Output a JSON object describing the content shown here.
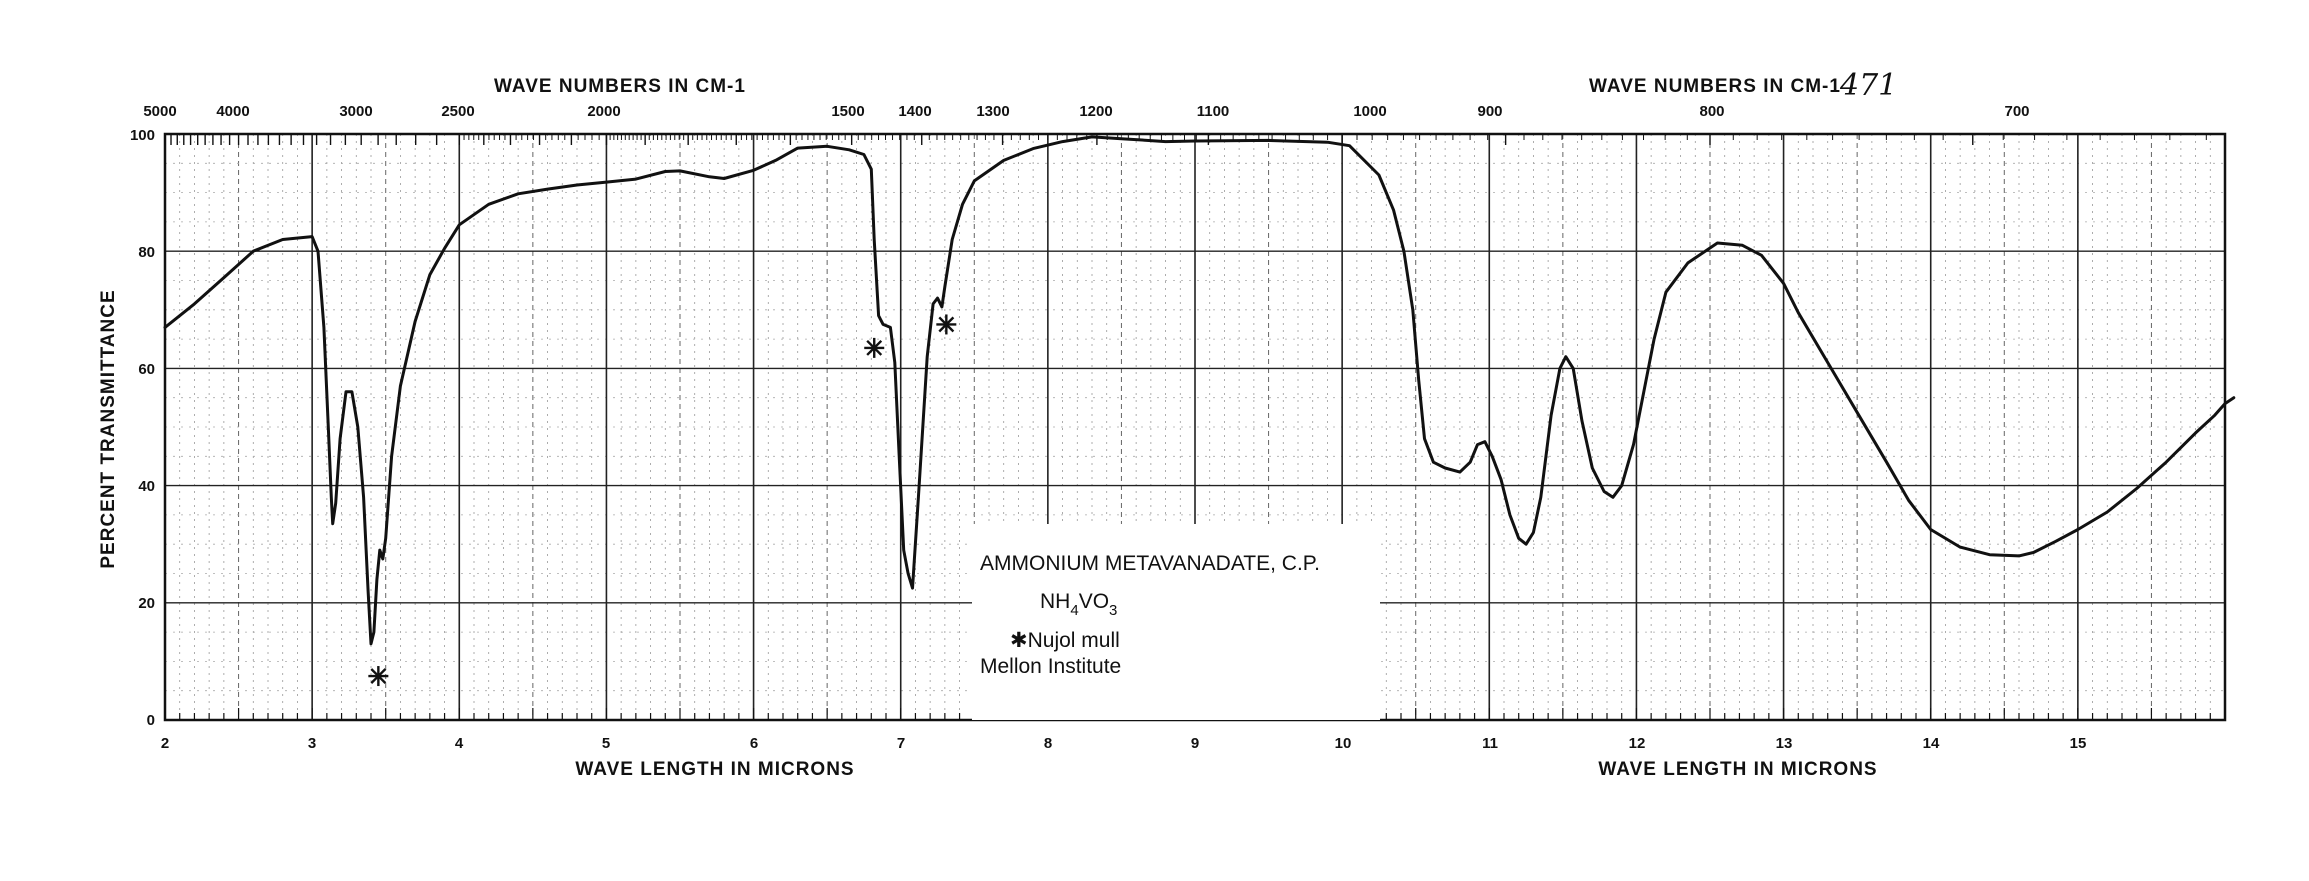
{
  "page_number": "471",
  "chart_data": {
    "type": "line",
    "title": "",
    "xlabel": "WAVE LENGTH IN MICRONS",
    "xlabel_right": "WAVE LENGTH IN MICRONS",
    "top_axis_label": "WAVE NUMBERS IN CM-1",
    "top_axis_label_right": "WAVE NUMBERS IN CM-1",
    "ylabel": "PERCENT TRANSMITTANCE",
    "xlim": [
      2,
      16
    ],
    "ylim": [
      0,
      100
    ],
    "grid": true,
    "x_ticks": [
      "2",
      "3",
      "4",
      "5",
      "6",
      "7",
      "8",
      "9",
      "10",
      "11",
      "12",
      "13",
      "14",
      "15"
    ],
    "y_ticks": [
      "0",
      "20",
      "40",
      "60",
      "80",
      "100"
    ],
    "top_ticks": [
      {
        "label": "5000",
        "wavenumber": 5000
      },
      {
        "label": "4000",
        "wavenumber": 4000
      },
      {
        "label": "3000",
        "wavenumber": 3000
      },
      {
        "label": "2500",
        "wavenumber": 2500
      },
      {
        "label": "2000",
        "wavenumber": 2000
      },
      {
        "label": "1500",
        "wavenumber": 1500
      },
      {
        "label": "1400",
        "wavenumber": 1400
      },
      {
        "label": "1300",
        "wavenumber": 1300
      },
      {
        "label": "1200",
        "wavenumber": 1200
      },
      {
        "label": "1100",
        "wavenumber": 1100
      },
      {
        "label": "1000",
        "wavenumber": 1000
      },
      {
        "label": "900",
        "wavenumber": 900
      },
      {
        "label": "800",
        "wavenumber": 800
      },
      {
        "label": "700",
        "wavenumber": 700
      }
    ],
    "series": [
      {
        "color": "#111111",
        "points": [
          [
            2.0,
            67
          ],
          [
            2.2,
            71
          ],
          [
            2.4,
            75.5
          ],
          [
            2.6,
            80
          ],
          [
            2.8,
            82
          ],
          [
            3.0,
            82.5
          ],
          [
            3.04,
            80
          ],
          [
            3.08,
            67
          ],
          [
            3.11,
            50
          ],
          [
            3.13,
            38
          ],
          [
            3.14,
            33.5
          ],
          [
            3.16,
            37
          ],
          [
            3.19,
            48
          ],
          [
            3.23,
            56
          ],
          [
            3.27,
            56
          ],
          [
            3.31,
            50
          ],
          [
            3.35,
            38
          ],
          [
            3.38,
            22
          ],
          [
            3.4,
            13
          ],
          [
            3.42,
            15
          ],
          [
            3.44,
            24
          ],
          [
            3.46,
            29
          ],
          [
            3.48,
            27.5
          ],
          [
            3.5,
            31
          ],
          [
            3.54,
            45
          ],
          [
            3.6,
            57
          ],
          [
            3.7,
            68
          ],
          [
            3.8,
            76
          ],
          [
            3.9,
            80.5
          ],
          [
            4.0,
            84.5
          ],
          [
            4.2,
            88
          ],
          [
            4.4,
            89.8
          ],
          [
            4.6,
            90.6
          ],
          [
            4.8,
            91.3
          ],
          [
            5.0,
            91.8
          ],
          [
            5.2,
            92.3
          ],
          [
            5.4,
            93.6
          ],
          [
            5.5,
            93.7
          ],
          [
            5.7,
            92.7
          ],
          [
            5.8,
            92.4
          ],
          [
            6.0,
            93.8
          ],
          [
            6.15,
            95.5
          ],
          [
            6.3,
            97.6
          ],
          [
            6.5,
            97.9
          ],
          [
            6.65,
            97.3
          ],
          [
            6.75,
            96.5
          ],
          [
            6.8,
            94
          ],
          [
            6.82,
            82
          ],
          [
            6.85,
            69
          ],
          [
            6.88,
            67.5
          ],
          [
            6.93,
            67
          ],
          [
            6.96,
            61
          ],
          [
            6.99,
            45
          ],
          [
            7.02,
            29
          ],
          [
            7.05,
            25
          ],
          [
            7.08,
            22.5
          ],
          [
            7.12,
            38
          ],
          [
            7.18,
            62
          ],
          [
            7.22,
            71
          ],
          [
            7.25,
            72
          ],
          [
            7.28,
            70.5
          ],
          [
            7.3,
            74
          ],
          [
            7.35,
            82
          ],
          [
            7.42,
            88
          ],
          [
            7.5,
            92
          ],
          [
            7.7,
            95.5
          ],
          [
            7.9,
            97.5
          ],
          [
            8.1,
            98.7
          ],
          [
            8.3,
            99.5
          ],
          [
            8.5,
            99.2
          ],
          [
            8.8,
            98.7
          ],
          [
            9.0,
            98.8
          ],
          [
            9.5,
            98.9
          ],
          [
            9.9,
            98.6
          ],
          [
            10.05,
            98
          ],
          [
            10.25,
            93
          ],
          [
            10.35,
            87
          ],
          [
            10.42,
            80
          ],
          [
            10.48,
            70
          ],
          [
            10.52,
            58
          ],
          [
            10.56,
            48
          ],
          [
            10.62,
            44
          ],
          [
            10.7,
            43
          ],
          [
            10.8,
            42.3
          ],
          [
            10.87,
            44
          ],
          [
            10.92,
            47
          ],
          [
            10.97,
            47.5
          ],
          [
            11.02,
            45
          ],
          [
            11.08,
            41
          ],
          [
            11.14,
            35
          ],
          [
            11.2,
            31
          ],
          [
            11.25,
            30
          ],
          [
            11.3,
            32
          ],
          [
            11.35,
            38
          ],
          [
            11.42,
            52
          ],
          [
            11.48,
            60
          ],
          [
            11.52,
            62
          ],
          [
            11.57,
            60
          ],
          [
            11.63,
            51
          ],
          [
            11.7,
            43
          ],
          [
            11.78,
            39
          ],
          [
            11.84,
            38
          ],
          [
            11.9,
            40
          ],
          [
            11.98,
            47
          ],
          [
            12.05,
            56
          ],
          [
            12.12,
            65
          ],
          [
            12.2,
            73
          ],
          [
            12.35,
            78
          ],
          [
            12.55,
            81.4
          ],
          [
            12.72,
            81
          ],
          [
            12.85,
            79.3
          ],
          [
            13.0,
            74.5
          ],
          [
            13.1,
            69.5
          ],
          [
            13.3,
            61
          ],
          [
            13.5,
            52.5
          ],
          [
            13.7,
            44
          ],
          [
            13.85,
            37.5
          ],
          [
            14.0,
            32.5
          ],
          [
            14.2,
            29.5
          ],
          [
            14.4,
            28.2
          ],
          [
            14.6,
            28
          ],
          [
            14.7,
            28.6
          ],
          [
            14.85,
            30.5
          ],
          [
            15.0,
            32.5
          ],
          [
            15.2,
            35.5
          ],
          [
            15.4,
            39.5
          ],
          [
            15.6,
            44
          ],
          [
            15.8,
            49
          ],
          [
            15.93,
            52
          ],
          [
            16.0,
            54
          ],
          [
            16.06,
            55
          ]
        ]
      }
    ],
    "markers": [
      {
        "label": "*",
        "x": 3.45,
        "y": 7.5
      },
      {
        "label": "*",
        "x": 6.82,
        "y": 63.5
      },
      {
        "label": "*",
        "x": 7.31,
        "y": 67.5
      }
    ],
    "annotations": {
      "line1": "AMMONIUM METAVANADATE, C.P.",
      "formula_nh": "NH",
      "formula_sub1": "4",
      "formula_vo": "VO",
      "formula_sub2": "3",
      "line3": "✱Nujol mull",
      "line4": "Mellon Institute"
    }
  }
}
